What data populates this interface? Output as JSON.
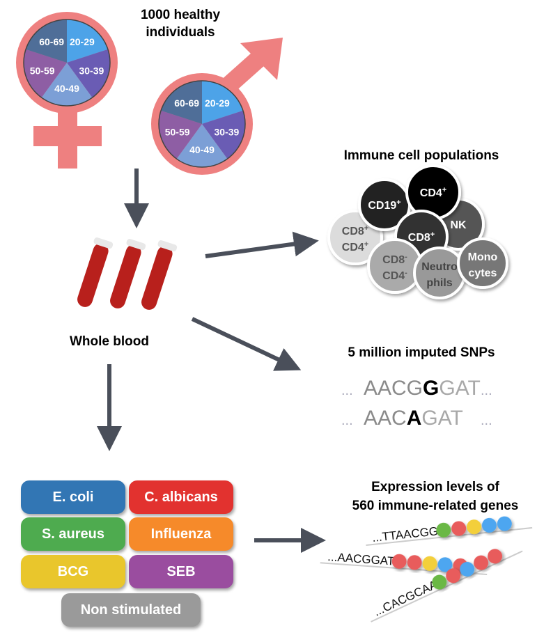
{
  "population": {
    "title_line1": "1000 healthy",
    "title_line2": "individuals",
    "age_groups": [
      "20-29",
      "30-39",
      "40-49",
      "50-59",
      "60-69"
    ],
    "age_colors": [
      "#4da3e8",
      "#6a5cb4",
      "#7c9fd6",
      "#8e5ea4",
      "#4f6e98"
    ],
    "symbol_color": "#ee8080"
  },
  "sample": {
    "label": "Whole blood"
  },
  "immune": {
    "title": "Immune cell populations",
    "cells": [
      {
        "line1": "CD4",
        "sup1": "+",
        "line2": "",
        "sup2": ""
      },
      {
        "line1": "CD19",
        "sup1": "+",
        "line2": "",
        "sup2": ""
      },
      {
        "line1": "NK",
        "sup1": "",
        "line2": "",
        "sup2": ""
      },
      {
        "line1": "CD8",
        "sup1": "+",
        "line2": "CD4",
        "sup2": "+"
      },
      {
        "line1": "CD8",
        "sup1": "+",
        "line2": "",
        "sup2": ""
      },
      {
        "line1": "CD8",
        "sup1": "-",
        "line2": "CD4",
        "sup2": "-"
      },
      {
        "line1": "Neutro",
        "sup1": "",
        "line2": "phils",
        "sup2": ""
      },
      {
        "line1": "Mono",
        "sup1": "",
        "line2": "cytes",
        "sup2": ""
      }
    ]
  },
  "snps": {
    "title": "5 million imputed SNPs",
    "seq1": {
      "pre": "AACG",
      "allele": "G",
      "post": "GAT"
    },
    "seq2": {
      "pre": "AAC",
      "allele": "A",
      "post": "GAT"
    },
    "dots": "..."
  },
  "stimuli": {
    "items": [
      {
        "label": "E. coli",
        "color": "#3276b4"
      },
      {
        "label": "C. albicans",
        "color": "#e2322f"
      },
      {
        "label": "S. aureus",
        "color": "#4eab4f"
      },
      {
        "label": "Influenza",
        "color": "#f68a2a"
      },
      {
        "label": "BCG",
        "color": "#e9c62c"
      },
      {
        "label": "SEB",
        "color": "#9a4d9f"
      },
      {
        "label": "Non stimulated",
        "color": "#9a9a9a"
      }
    ]
  },
  "expression": {
    "title_line1": "Expression levels of",
    "title_line2": "560 immune-related genes",
    "reads": [
      {
        "seq": "...TTAACGG",
        "dots": [
          "#6ab844",
          "#e85c5c",
          "#f3cf3a",
          "#4da6f0",
          "#4da6f0"
        ]
      },
      {
        "seq": "...AACGGAT",
        "dots": [
          "#e85c5c",
          "#e85c5c",
          "#f3cf3a",
          "#4da6f0",
          "#e85c5c"
        ]
      },
      {
        "seq": "...CACGCAA",
        "dots": [
          "#6ab844",
          "#e85c5c",
          "#4da6f0",
          "#e85c5c",
          "#e85c5c"
        ]
      }
    ]
  }
}
